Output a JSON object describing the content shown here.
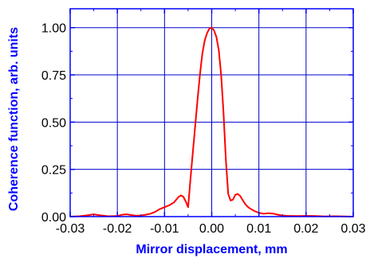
{
  "chart_data": {
    "type": "line",
    "title": "",
    "xlabel": "Mirror displacement, mm",
    "ylabel": "Coherence function, arb. units",
    "xlim": [
      -0.03,
      0.03
    ],
    "ylim": [
      0,
      1.1
    ],
    "xticks": [
      -0.03,
      -0.02,
      -0.01,
      0.0,
      0.01,
      0.02,
      0.03
    ],
    "yticks": [
      0.0,
      0.25,
      0.5,
      0.75,
      1.0
    ],
    "xtick_labels": [
      "-0.03",
      "-0.02",
      "-0.01",
      "0.00",
      "0.01",
      "0.02",
      "0.03"
    ],
    "ytick_labels": [
      "0.00",
      "0.25",
      "0.50",
      "0.75",
      "1.00"
    ],
    "grid": true,
    "legend": "none",
    "colors": {
      "line": "#ff0000",
      "grid": "#0000cc",
      "axis": "#0000ff",
      "label": "#0000ff"
    },
    "series": [
      {
        "x": [
          -0.03,
          -0.028,
          -0.026,
          -0.025,
          -0.024,
          -0.022,
          -0.02,
          -0.019,
          -0.018,
          -0.017,
          -0.016,
          -0.015,
          -0.014,
          -0.013,
          -0.012,
          -0.011,
          -0.01,
          -0.009,
          -0.008,
          -0.0075,
          -0.007,
          -0.0065,
          -0.006,
          -0.0055,
          -0.005,
          -0.0045,
          -0.004,
          -0.0035,
          -0.003,
          -0.0025,
          -0.002,
          -0.0015,
          -0.001,
          -0.0005,
          0.0,
          0.0005,
          0.001,
          0.0015,
          0.002,
          0.0025,
          0.003,
          0.0035,
          0.004,
          0.0045,
          0.005,
          0.0055,
          0.006,
          0.0065,
          0.007,
          0.0075,
          0.008,
          0.009,
          0.01,
          0.011,
          0.012,
          0.013,
          0.014,
          0.015,
          0.016,
          0.018,
          0.02,
          0.022,
          0.024,
          0.026,
          0.028,
          0.03
        ],
        "y": [
          0.0,
          0.002,
          0.008,
          0.012,
          0.008,
          0.002,
          0.003,
          0.01,
          0.012,
          0.008,
          0.005,
          0.006,
          0.01,
          0.015,
          0.025,
          0.04,
          0.05,
          0.06,
          0.075,
          0.09,
          0.105,
          0.112,
          0.105,
          0.08,
          0.05,
          0.2,
          0.34,
          0.48,
          0.62,
          0.75,
          0.86,
          0.93,
          0.97,
          0.995,
          1.0,
          0.985,
          0.95,
          0.88,
          0.75,
          0.55,
          0.3,
          0.12,
          0.085,
          0.09,
          0.115,
          0.12,
          0.11,
          0.09,
          0.07,
          0.055,
          0.045,
          0.03,
          0.02,
          0.015,
          0.018,
          0.016,
          0.01,
          0.006,
          0.004,
          0.003,
          0.004,
          0.003,
          0.001,
          0.002,
          0.001,
          0.0
        ]
      }
    ]
  }
}
